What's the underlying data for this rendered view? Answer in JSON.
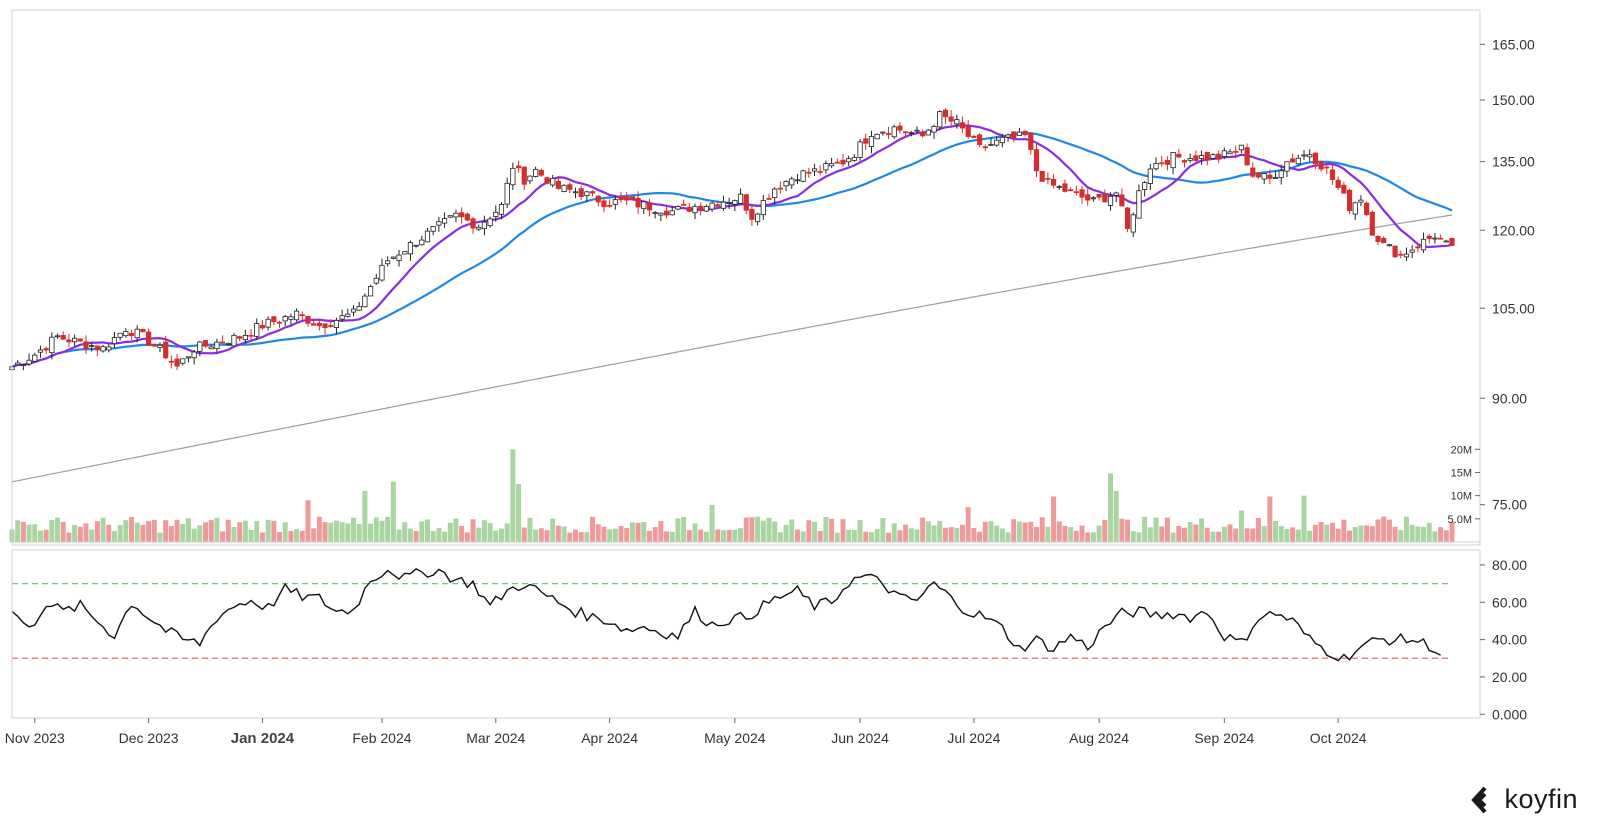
{
  "brand": {
    "name": "koyfin",
    "icon": "koyfin-logo-icon"
  },
  "colors": {
    "up": "#222222",
    "down": "#d32f2f",
    "vol_up": "#a8d5a0",
    "vol_down": "#ef9a9a",
    "ma_fast": "#8a2be2",
    "ma_mid": "#1e88e5",
    "ma_slow": "#9e9e9e",
    "rsi": "#111111",
    "rsi_over": "#7cc47f",
    "rsi_under": "#e57373"
  },
  "chart_data": [
    {
      "type": "candlestick",
      "title": "",
      "x_labels": [
        {
          "label": "Nov 2023",
          "bar": 4
        },
        {
          "label": "Dec 2023",
          "bar": 24
        },
        {
          "label": "Jan 2024",
          "bar": 44,
          "emphasis": true
        },
        {
          "label": "Feb 2024",
          "bar": 65
        },
        {
          "label": "Mar 2024",
          "bar": 85
        },
        {
          "label": "Apr 2024",
          "bar": 105
        },
        {
          "label": "May 2024",
          "bar": 127
        },
        {
          "label": "Jun 2024",
          "bar": 149
        },
        {
          "label": "Jul 2024",
          "bar": 169
        },
        {
          "label": "Aug 2024",
          "bar": 191
        },
        {
          "label": "Sep 2024",
          "bar": 213
        },
        {
          "label": "Oct 2024",
          "bar": 233
        }
      ],
      "y_ticks": [
        165,
        150,
        135,
        120,
        105,
        90,
        75
      ],
      "y_tick_labels": [
        "165.00",
        "150.00",
        "135.00",
        "120.00",
        "105.00",
        "90.00",
        "75.00"
      ],
      "y_scale": "log",
      "ylim": [
        70,
        175
      ],
      "bars": 254,
      "close_anchors": [
        [
          0,
          95
        ],
        [
          4,
          97
        ],
        [
          8,
          100
        ],
        [
          12,
          99
        ],
        [
          16,
          98
        ],
        [
          20,
          101.5
        ],
        [
          23,
          100
        ],
        [
          27,
          97
        ],
        [
          29,
          95
        ],
        [
          32,
          98
        ],
        [
          36,
          99
        ],
        [
          40,
          100
        ],
        [
          44,
          102
        ],
        [
          47,
          103
        ],
        [
          50,
          104
        ],
        [
          54,
          102
        ],
        [
          57,
          103
        ],
        [
          60,
          104
        ],
        [
          63,
          109
        ],
        [
          66,
          114
        ],
        [
          70,
          117
        ],
        [
          74,
          120
        ],
        [
          78,
          123
        ],
        [
          82,
          121
        ],
        [
          86,
          125
        ],
        [
          88,
          134
        ],
        [
          90,
          131
        ],
        [
          92,
          133
        ],
        [
          96,
          129
        ],
        [
          100,
          128
        ],
        [
          104,
          126
        ],
        [
          108,
          126
        ],
        [
          112,
          125
        ],
        [
          116,
          124
        ],
        [
          120,
          125
        ],
        [
          124,
          126
        ],
        [
          128,
          127
        ],
        [
          130,
          123
        ],
        [
          134,
          129
        ],
        [
          138,
          132
        ],
        [
          142,
          133
        ],
        [
          146,
          135
        ],
        [
          148,
          137
        ],
        [
          151,
          142
        ],
        [
          155,
          143
        ],
        [
          160,
          141
        ],
        [
          163,
          146
        ],
        [
          166,
          144
        ],
        [
          168,
          141
        ],
        [
          170,
          138
        ],
        [
          174,
          140
        ],
        [
          178,
          141
        ],
        [
          180,
          133
        ],
        [
          182,
          130
        ],
        [
          186,
          128
        ],
        [
          190,
          126
        ],
        [
          194,
          128
        ],
        [
          196,
          120
        ],
        [
          198,
          128
        ],
        [
          200,
          134
        ],
        [
          204,
          136
        ],
        [
          208,
          136
        ],
        [
          212,
          136
        ],
        [
          216,
          138
        ],
        [
          218,
          132
        ],
        [
          221,
          131
        ],
        [
          224,
          135
        ],
        [
          228,
          137
        ],
        [
          231,
          133
        ],
        [
          233,
          129
        ],
        [
          235,
          125
        ],
        [
          237,
          127
        ],
        [
          239,
          120
        ],
        [
          241,
          117
        ],
        [
          244,
          115
        ],
        [
          247,
          117
        ],
        [
          250,
          119
        ],
        [
          253,
          116
        ],
        [
          256,
          114
        ]
      ],
      "series": [
        {
          "name": "",
          "kind": "sma",
          "period": 10
        },
        {
          "name": "",
          "kind": "sma",
          "period": 30
        },
        {
          "name": "",
          "kind": "sma",
          "period": 200
        }
      ]
    },
    {
      "type": "bar",
      "title": "",
      "y_tick_labels": [
        "20M",
        "15M",
        "10M",
        "5.0M"
      ],
      "y_ticks": [
        20,
        15,
        10,
        5
      ],
      "ylim": [
        0,
        22
      ],
      "unit": "millions",
      "spikes": [
        {
          "bar": 88,
          "value": 20
        },
        {
          "bar": 89,
          "value": 12.5
        },
        {
          "bar": 67,
          "value": 13
        },
        {
          "bar": 62,
          "value": 11
        },
        {
          "bar": 52,
          "value": 9
        },
        {
          "bar": 123,
          "value": 8
        },
        {
          "bar": 183,
          "value": 9.8
        },
        {
          "bar": 193,
          "value": 14.8
        },
        {
          "bar": 194,
          "value": 11
        },
        {
          "bar": 221,
          "value": 9.8
        },
        {
          "bar": 227,
          "value": 10
        },
        {
          "bar": 168,
          "value": 7.5
        },
        {
          "bar": 216,
          "value": 6.8
        }
      ]
    },
    {
      "type": "line",
      "title": "",
      "y_ticks": [
        80,
        60,
        40,
        20,
        0
      ],
      "y_tick_labels": [
        "80.00",
        "60.00",
        "40.00",
        "20.00",
        "0.000"
      ],
      "ylim": [
        -2,
        88
      ],
      "overbought": 70,
      "oversold": 30,
      "rsi_anchors": [
        [
          0,
          56
        ],
        [
          3,
          45
        ],
        [
          6,
          60
        ],
        [
          9,
          55
        ],
        [
          12,
          58
        ],
        [
          15,
          50
        ],
        [
          18,
          42
        ],
        [
          21,
          60
        ],
        [
          24,
          52
        ],
        [
          27,
          45
        ],
        [
          30,
          40
        ],
        [
          33,
          38
        ],
        [
          36,
          52
        ],
        [
          39,
          58
        ],
        [
          42,
          61
        ],
        [
          45,
          57
        ],
        [
          48,
          67
        ],
        [
          51,
          63
        ],
        [
          54,
          62
        ],
        [
          57,
          55
        ],
        [
          60,
          56
        ],
        [
          63,
          72
        ],
        [
          66,
          78
        ],
        [
          69,
          73
        ],
        [
          72,
          76
        ],
        [
          75,
          77
        ],
        [
          78,
          72
        ],
        [
          81,
          70
        ],
        [
          84,
          58
        ],
        [
          87,
          66
        ],
        [
          90,
          70
        ],
        [
          93,
          65
        ],
        [
          96,
          60
        ],
        [
          99,
          55
        ],
        [
          102,
          52
        ],
        [
          105,
          50
        ],
        [
          108,
          45
        ],
        [
          111,
          47
        ],
        [
          114,
          44
        ],
        [
          117,
          42
        ],
        [
          120,
          55
        ],
        [
          123,
          48
        ],
        [
          126,
          51
        ],
        [
          129,
          52
        ],
        [
          132,
          58
        ],
        [
          135,
          63
        ],
        [
          138,
          66
        ],
        [
          141,
          58
        ],
        [
          144,
          60
        ],
        [
          147,
          71
        ],
        [
          150,
          74
        ],
        [
          153,
          70
        ],
        [
          156,
          62
        ],
        [
          159,
          61
        ],
        [
          162,
          70
        ],
        [
          165,
          62
        ],
        [
          168,
          55
        ],
        [
          171,
          52
        ],
        [
          174,
          46
        ],
        [
          177,
          35
        ],
        [
          180,
          40
        ],
        [
          183,
          35
        ],
        [
          186,
          42
        ],
        [
          189,
          36
        ],
        [
          192,
          47
        ],
        [
          195,
          54
        ],
        [
          198,
          55
        ],
        [
          201,
          53
        ],
        [
          204,
          54
        ],
        [
          207,
          52
        ],
        [
          210,
          55
        ],
        [
          213,
          42
        ],
        [
          216,
          38
        ],
        [
          219,
          52
        ],
        [
          222,
          54
        ],
        [
          225,
          50
        ],
        [
          228,
          40
        ],
        [
          231,
          34
        ],
        [
          234,
          30
        ],
        [
          237,
          36
        ],
        [
          240,
          40
        ],
        [
          243,
          40
        ],
        [
          246,
          40
        ],
        [
          249,
          37
        ],
        [
          251,
          32
        ]
      ]
    }
  ]
}
